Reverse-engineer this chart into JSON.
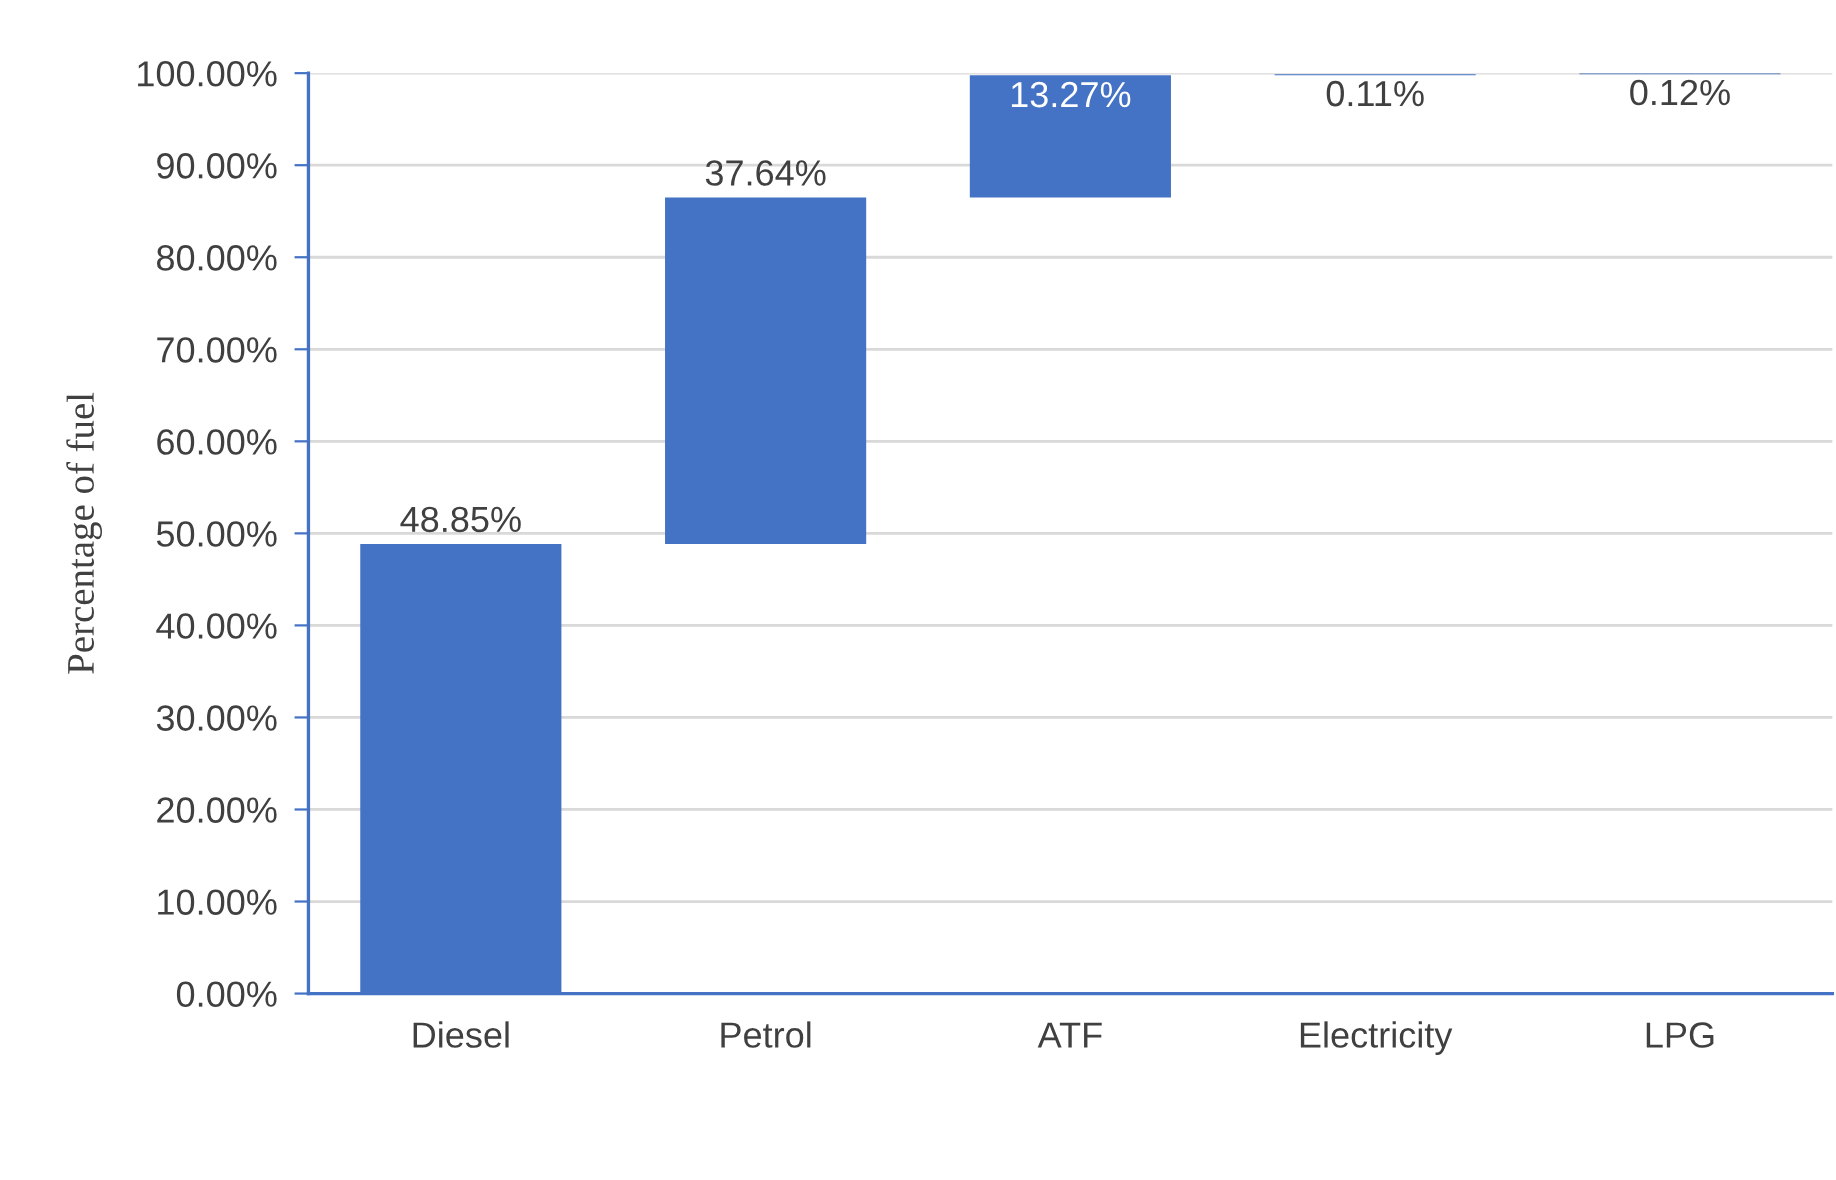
{
  "chart_data": {
    "type": "bar",
    "ylabel": "Percentage of fuel",
    "categories": [
      "Diesel",
      "Petrol",
      "ATF",
      "Electricity",
      "LPG"
    ],
    "values": [
      48.85,
      37.64,
      13.27,
      0.11,
      0.12
    ],
    "base": [
      0,
      48.85,
      86.49,
      99.76,
      99.87
    ],
    "value_labels": [
      "48.85%",
      "37.64%",
      "13.27%",
      "0.11%",
      "0.12%"
    ],
    "color": "#4472c4",
    "ylim": [
      0,
      100
    ],
    "yticks": [
      {
        "value": 0,
        "label": "0.00%"
      },
      {
        "value": 10,
        "label": "10.00%"
      },
      {
        "value": 20,
        "label": "20.00%"
      },
      {
        "value": 30,
        "label": "30.00%"
      },
      {
        "value": 40,
        "label": "40.00%"
      },
      {
        "value": 50,
        "label": "50.00%"
      },
      {
        "value": 60,
        "label": "60.00%"
      },
      {
        "value": 70,
        "label": "70.00%"
      },
      {
        "value": 80,
        "label": "80.00%"
      },
      {
        "value": 90,
        "label": "90.00%"
      },
      {
        "value": 100,
        "label": "100.00%"
      }
    ],
    "grid": "y",
    "legend": false
  }
}
